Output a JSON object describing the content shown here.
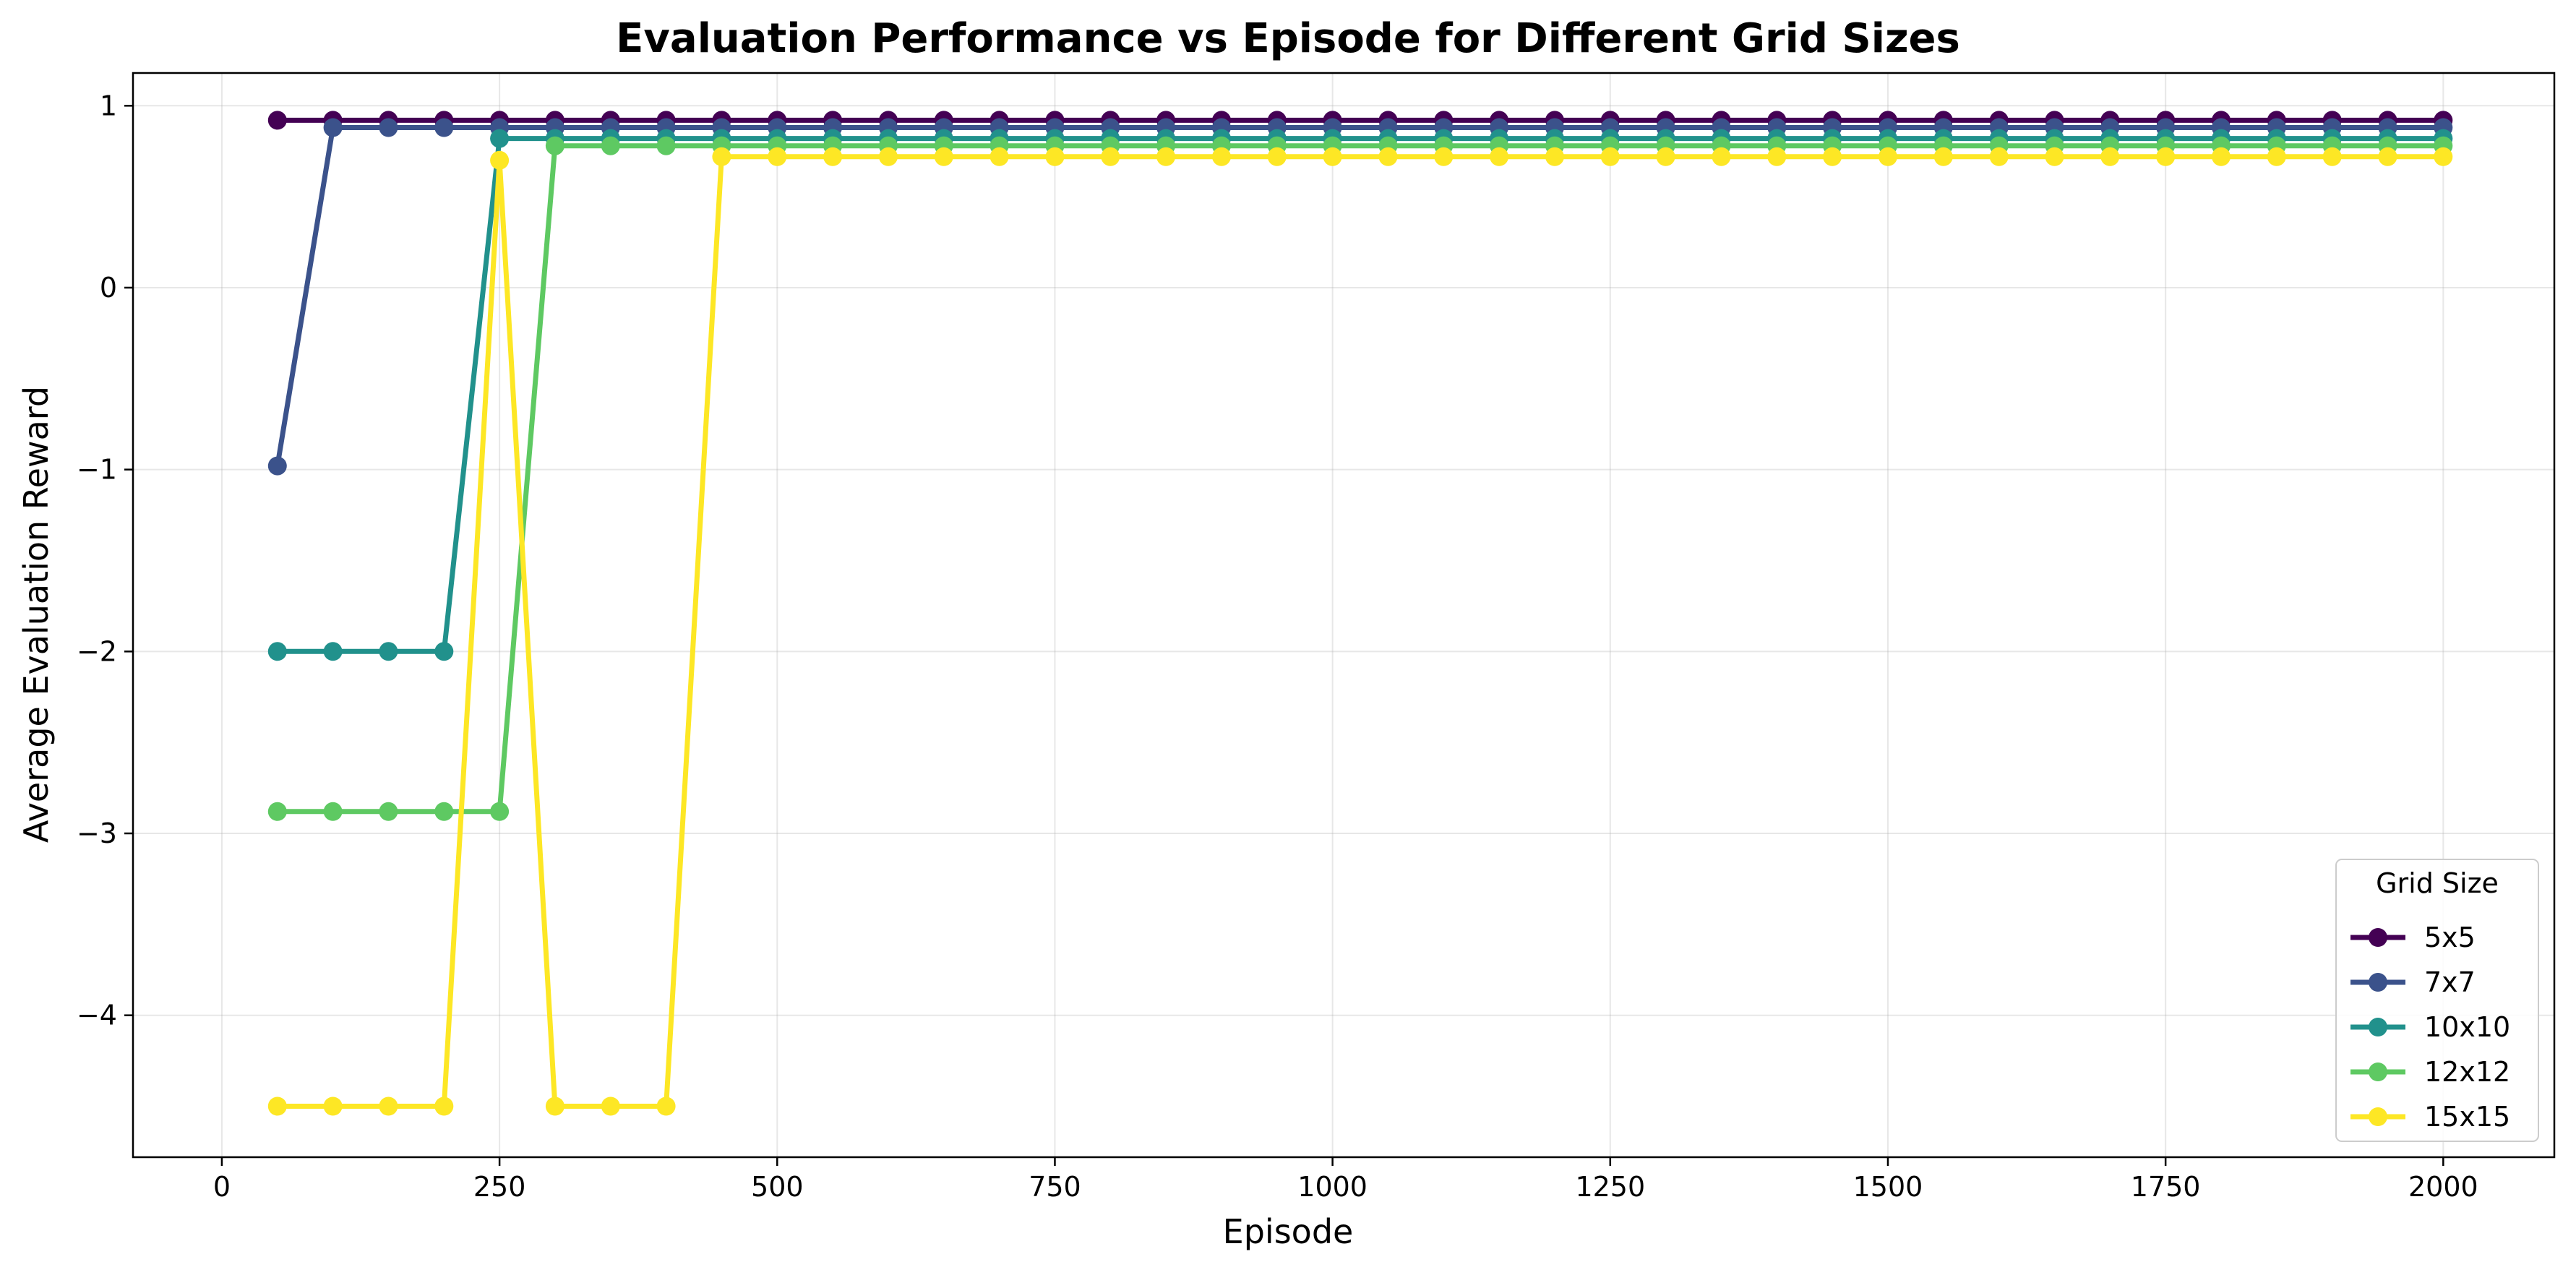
{
  "chart_data": {
    "type": "line",
    "title": "Evaluation Performance vs Episode for Different Grid Sizes",
    "xlabel": "Episode",
    "ylabel": "Average Evaluation Reward",
    "xlim": [
      -80,
      2100
    ],
    "ylim": [
      -4.78,
      1.18
    ],
    "xticks": [
      0,
      250,
      500,
      750,
      1000,
      1250,
      1500,
      1750,
      2000
    ],
    "yticks": [
      1,
      0,
      -1,
      -2,
      -3,
      -4
    ],
    "xtick_labels": [
      "0",
      "250",
      "500",
      "750",
      "1000",
      "1250",
      "1500",
      "1750",
      "2000"
    ],
    "ytick_labels": [
      "1",
      "0",
      "−1",
      "−2",
      "−3",
      "−4"
    ],
    "grid": true,
    "legend": {
      "title": "Grid Size",
      "placement": "lower-right"
    },
    "x": [
      50,
      100,
      150,
      200,
      250,
      300,
      350,
      400,
      450,
      500,
      550,
      600,
      650,
      700,
      750,
      800,
      850,
      900,
      950,
      1000,
      1050,
      1100,
      1150,
      1200,
      1250,
      1300,
      1350,
      1400,
      1450,
      1500,
      1550,
      1600,
      1650,
      1700,
      1750,
      1800,
      1850,
      1900,
      1950,
      2000
    ],
    "series": [
      {
        "name": "5x5",
        "color": "#440154",
        "values": [
          0.92,
          0.92,
          0.92,
          0.92,
          0.92,
          0.92,
          0.92,
          0.92,
          0.92,
          0.92,
          0.92,
          0.92,
          0.92,
          0.92,
          0.92,
          0.92,
          0.92,
          0.92,
          0.92,
          0.92,
          0.92,
          0.92,
          0.92,
          0.92,
          0.92,
          0.92,
          0.92,
          0.92,
          0.92,
          0.92,
          0.92,
          0.92,
          0.92,
          0.92,
          0.92,
          0.92,
          0.92,
          0.92,
          0.92,
          0.92
        ]
      },
      {
        "name": "7x7",
        "color": "#3b528b",
        "values": [
          -0.98,
          0.88,
          0.88,
          0.88,
          0.88,
          0.88,
          0.88,
          0.88,
          0.88,
          0.88,
          0.88,
          0.88,
          0.88,
          0.88,
          0.88,
          0.88,
          0.88,
          0.88,
          0.88,
          0.88,
          0.88,
          0.88,
          0.88,
          0.88,
          0.88,
          0.88,
          0.88,
          0.88,
          0.88,
          0.88,
          0.88,
          0.88,
          0.88,
          0.88,
          0.88,
          0.88,
          0.88,
          0.88,
          0.88,
          0.88
        ]
      },
      {
        "name": "10x10",
        "color": "#21918c",
        "values": [
          -2.0,
          -2.0,
          -2.0,
          -2.0,
          0.82,
          0.82,
          0.82,
          0.82,
          0.82,
          0.82,
          0.82,
          0.82,
          0.82,
          0.82,
          0.82,
          0.82,
          0.82,
          0.82,
          0.82,
          0.82,
          0.82,
          0.82,
          0.82,
          0.82,
          0.82,
          0.82,
          0.82,
          0.82,
          0.82,
          0.82,
          0.82,
          0.82,
          0.82,
          0.82,
          0.82,
          0.82,
          0.82,
          0.82,
          0.82,
          0.82
        ]
      },
      {
        "name": "12x12",
        "color": "#5ec962",
        "values": [
          -2.88,
          -2.88,
          -2.88,
          -2.88,
          -2.88,
          0.78,
          0.78,
          0.78,
          0.78,
          0.78,
          0.78,
          0.78,
          0.78,
          0.78,
          0.78,
          0.78,
          0.78,
          0.78,
          0.78,
          0.78,
          0.78,
          0.78,
          0.78,
          0.78,
          0.78,
          0.78,
          0.78,
          0.78,
          0.78,
          0.78,
          0.78,
          0.78,
          0.78,
          0.78,
          0.78,
          0.78,
          0.78,
          0.78,
          0.78,
          0.78
        ]
      },
      {
        "name": "15x15",
        "color": "#fde725",
        "values": [
          -4.5,
          -4.5,
          -4.5,
          -4.5,
          0.7,
          -4.5,
          -4.5,
          -4.5,
          0.72,
          0.72,
          0.72,
          0.72,
          0.72,
          0.72,
          0.72,
          0.72,
          0.72,
          0.72,
          0.72,
          0.72,
          0.72,
          0.72,
          0.72,
          0.72,
          0.72,
          0.72,
          0.72,
          0.72,
          0.72,
          0.72,
          0.72,
          0.72,
          0.72,
          0.72,
          0.72,
          0.72,
          0.72,
          0.72,
          0.72,
          0.72
        ]
      }
    ]
  }
}
